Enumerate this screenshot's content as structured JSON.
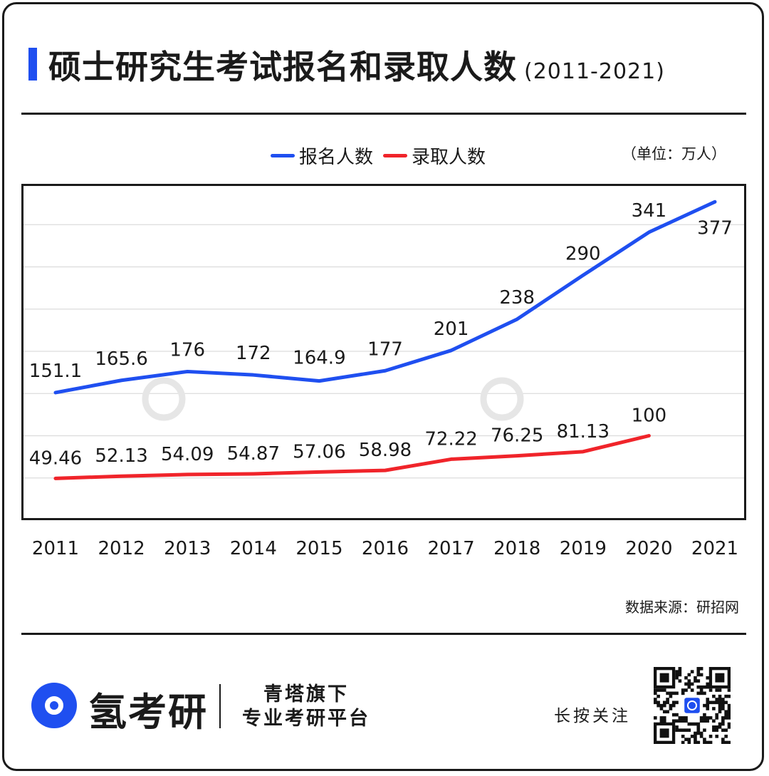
{
  "title": "硕士研究生考试报名和录取人数",
  "subtitle": "(2011-2021)",
  "unit": "（单位：万人）",
  "source": "数据来源：研招网",
  "footer": {
    "brand": "氢考研",
    "slogan_line1": "青塔旗下",
    "slogan_line2": "专业考研平台",
    "follow": "长按关注"
  },
  "colors": {
    "applicants": "#1f4ff0",
    "admitted": "#f0242a",
    "accent": "#1f4ff0"
  },
  "chart_data": {
    "type": "line",
    "categories": [
      "2011",
      "2012",
      "2013",
      "2014",
      "2015",
      "2016",
      "2017",
      "2018",
      "2019",
      "2020",
      "2021"
    ],
    "series": [
      {
        "name": "报名人数",
        "values": [
          151.1,
          165.6,
          176,
          172,
          164.9,
          177,
          201,
          238,
          290,
          341,
          377
        ],
        "labels": [
          "151.1",
          "165.6",
          "176",
          "172",
          "164.9",
          "177",
          "201",
          "238",
          "290",
          "341",
          "377"
        ]
      },
      {
        "name": "录取人数",
        "values": [
          49.46,
          52.13,
          54.09,
          54.87,
          57.06,
          58.98,
          72.22,
          76.25,
          81.13,
          100,
          null
        ],
        "labels": [
          "49.46",
          "52.13",
          "54.09",
          "54.87",
          "57.06",
          "58.98",
          "72.22",
          "76.25",
          "81.13",
          "100",
          ""
        ]
      }
    ],
    "ylim": [
      0,
      400
    ],
    "grid": true,
    "legend_position": "top-center"
  }
}
